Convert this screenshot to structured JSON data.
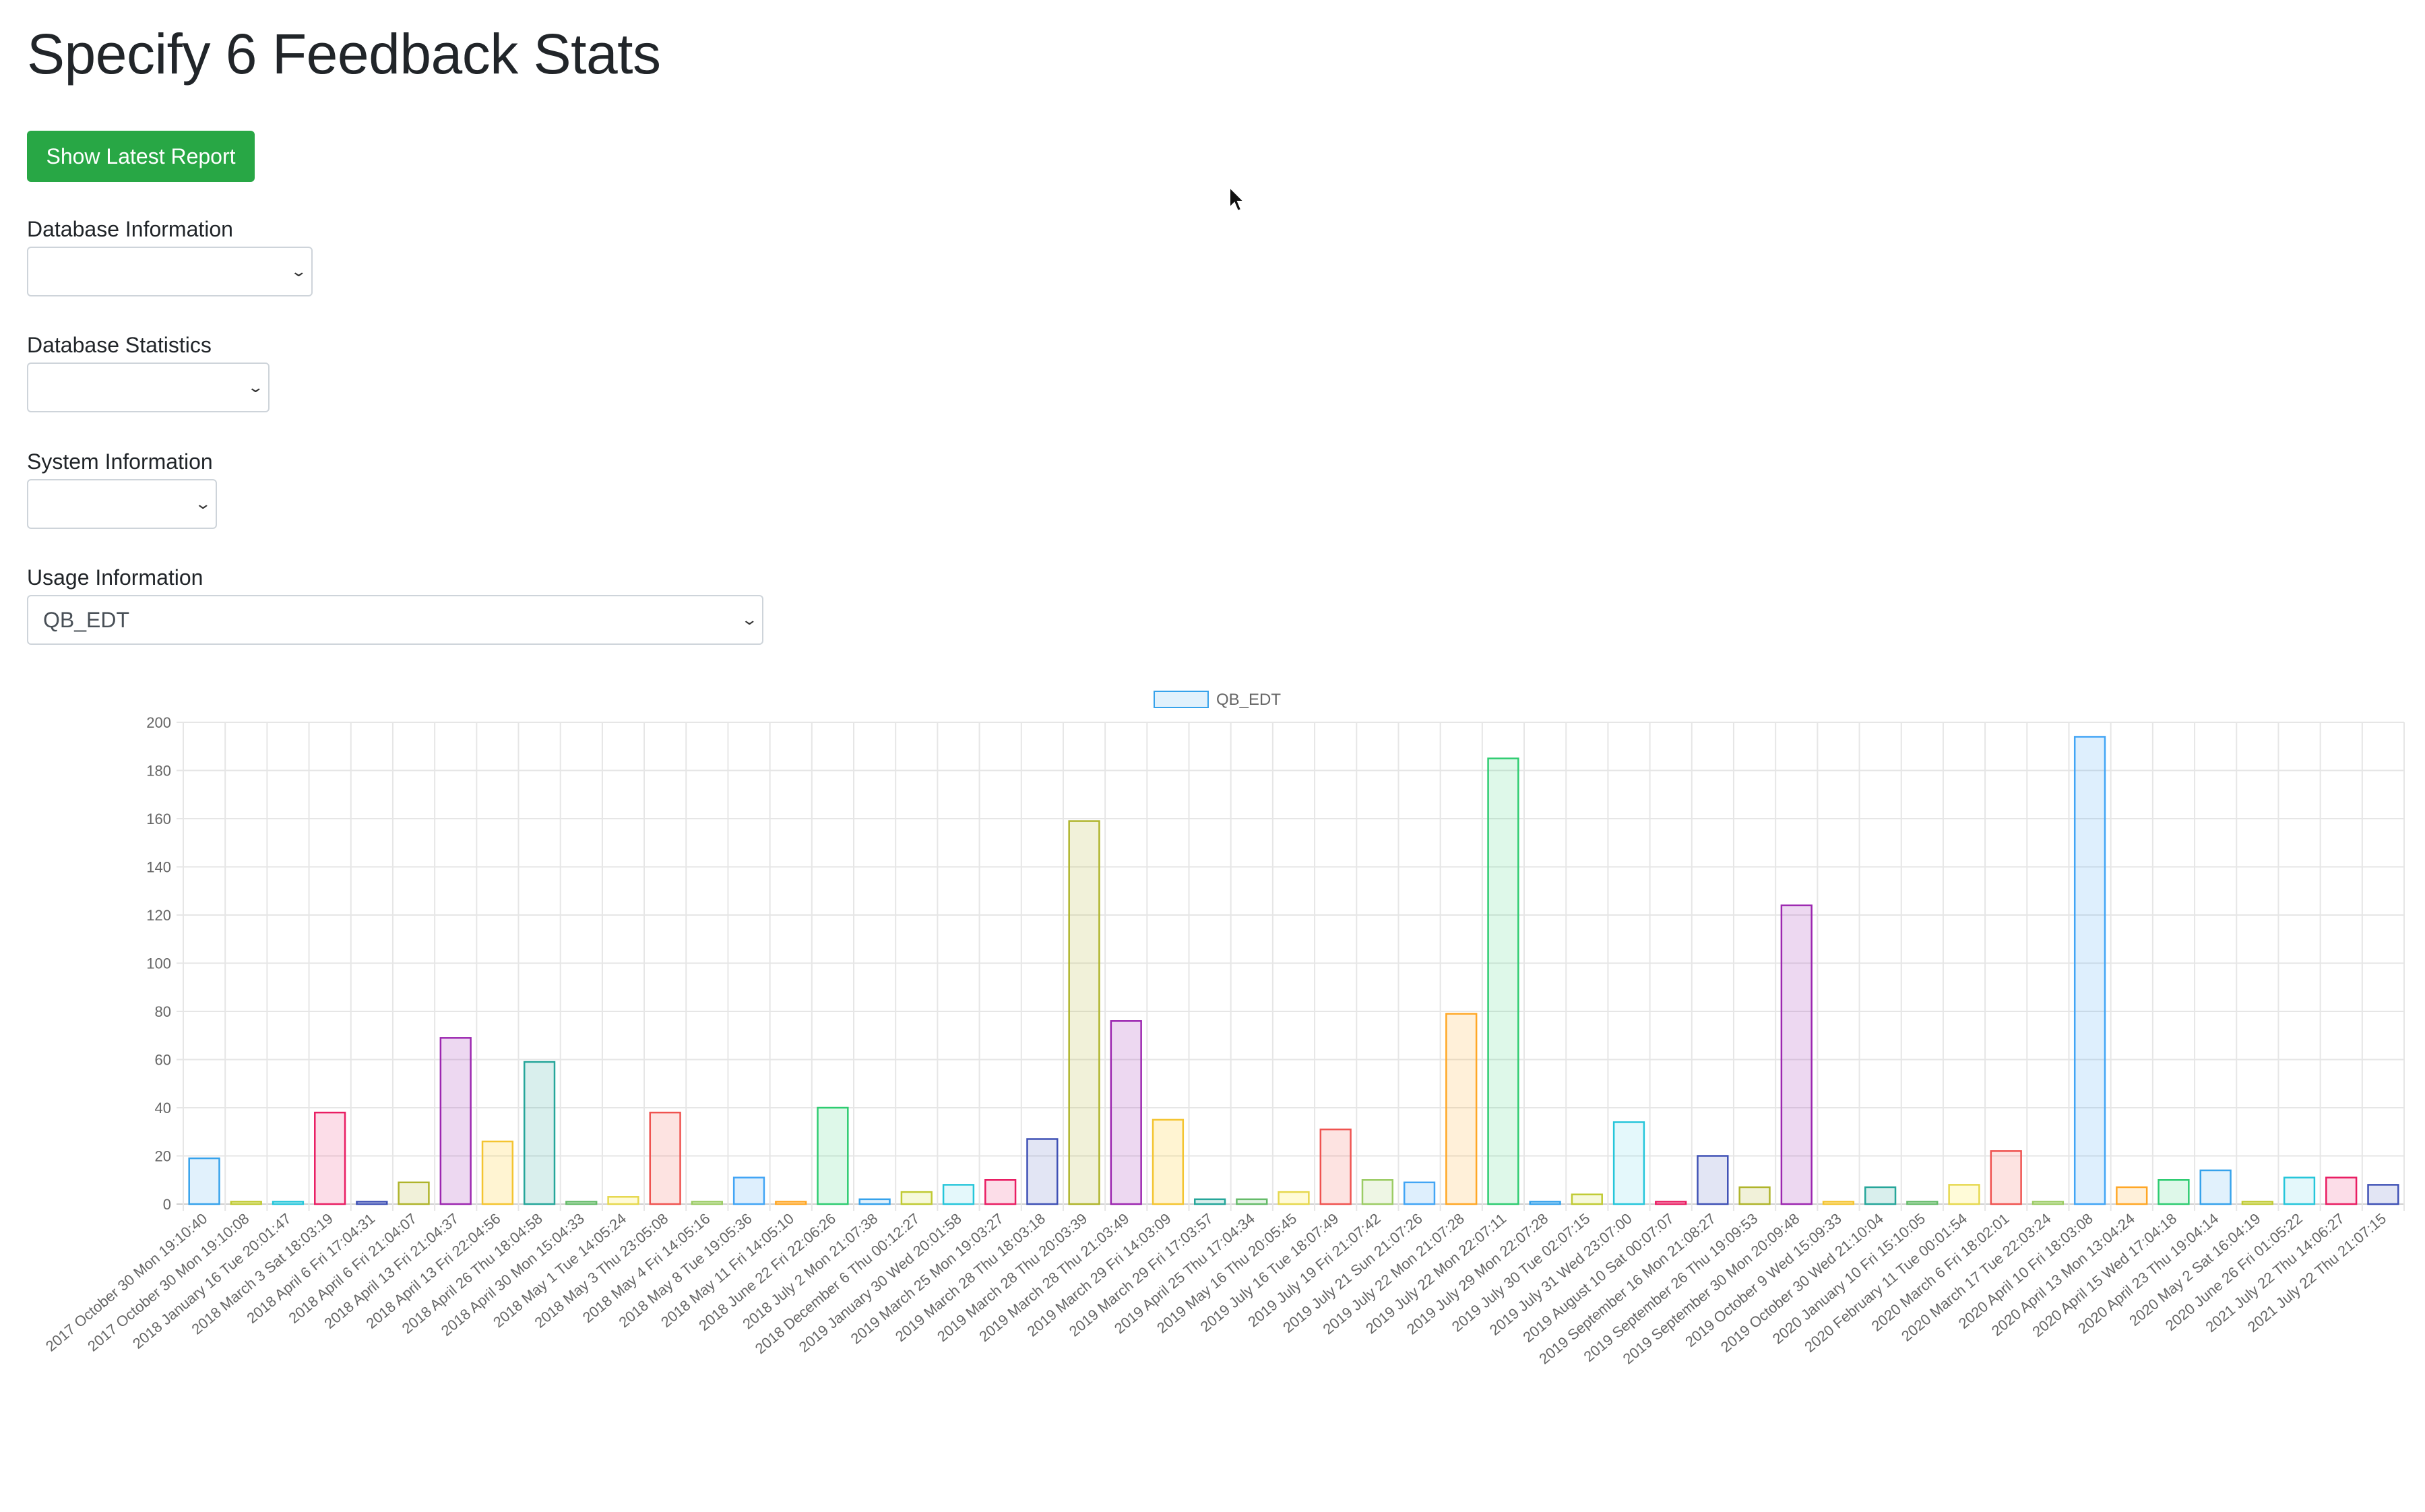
{
  "page": {
    "title": "Specify 6 Feedback Stats",
    "latest_button": "Show Latest Report"
  },
  "fields": {
    "db_info": {
      "label": "Database Information",
      "value": ""
    },
    "db_stats": {
      "label": "Database Statistics",
      "value": ""
    },
    "sys_info": {
      "label": "System Information",
      "value": ""
    },
    "usage_info": {
      "label": "Usage Information",
      "value": "QB_EDT"
    }
  },
  "chart_data": {
    "type": "bar",
    "legend": "QB_EDT",
    "legend_position": "top",
    "grid": true,
    "ylim": [
      0,
      200
    ],
    "yticks": [
      0,
      20,
      40,
      60,
      80,
      100,
      120,
      140,
      160,
      180,
      200
    ],
    "categories": [
      "2017 October 30 Mon 19:10:40",
      "2017 October 30 Mon 19:10:08",
      "2018 January 16 Tue 20:01:47",
      "2018 March 3 Sat 18:03:19",
      "2018 April 6 Fri 17:04:31",
      "2018 April 6 Fri 21:04:07",
      "2018 April 13 Fri 21:04:37",
      "2018 April 13 Fri 22:04:56",
      "2018 April 26 Thu 18:04:58",
      "2018 April 30 Mon 15:04:33",
      "2018 May 1 Tue 14:05:24",
      "2018 May 3 Thu 23:05:08",
      "2018 May 4 Fri 14:05:16",
      "2018 May 8 Tue 19:05:36",
      "2018 May 11 Fri 14:05:10",
      "2018 June 22 Fri 22:06:26",
      "2018 July 2 Mon 21:07:38",
      "2018 December 6 Thu 00:12:27",
      "2019 January 30 Wed 20:01:58",
      "2019 March 25 Mon 19:03:27",
      "2019 March 28 Thu 18:03:18",
      "2019 March 28 Thu 20:03:39",
      "2019 March 28 Thu 21:03:49",
      "2019 March 29 Fri 14:03:09",
      "2019 March 29 Fri 17:03:57",
      "2019 April 25 Thu 17:04:34",
      "2019 May 16 Thu 20:05:45",
      "2019 July 16 Tue 18:07:49",
      "2019 July 19 Fri 21:07:42",
      "2019 July 21 Sun 21:07:26",
      "2019 July 22 Mon 21:07:28",
      "2019 July 22 Mon 22:07:11",
      "2019 July 29 Mon 22:07:28",
      "2019 July 30 Tue 02:07:15",
      "2019 July 31 Wed 23:07:00",
      "2019 August 10 Sat 00:07:07",
      "2019 September 16 Mon 21:08:27",
      "2019 September 26 Thu 19:09:53",
      "2019 September 30 Mon 20:09:48",
      "2019 October 9 Wed 15:09:33",
      "2019 October 30 Wed 21:10:04",
      "2020 January 10 Fri 15:10:05",
      "2020 February 11 Tue 00:01:54",
      "2020 March 6 Fri 18:02:01",
      "2020 March 17 Tue 22:03:24",
      "2020 April 10 Fri 18:03:08",
      "2020 April 13 Mon 13:04:24",
      "2020 April 15 Wed 17:04:18",
      "2020 April 23 Thu 19:04:14",
      "2020 May 2 Sat 16:04:19",
      "2020 June 26 Fri 01:05:22",
      "2021 July 22 Thu 14:06:27",
      "2021 July 22 Thu 21:07:15"
    ],
    "values": [
      19,
      1,
      1,
      38,
      1,
      9,
      69,
      26,
      59,
      1,
      3,
      38,
      1,
      11,
      1,
      40,
      2,
      5,
      8,
      10,
      27,
      159,
      76,
      35,
      2,
      2,
      5,
      31,
      10,
      9,
      79,
      185,
      1,
      4,
      34,
      1,
      20,
      7,
      124,
      1,
      7,
      1,
      8,
      22,
      1,
      194,
      7,
      10,
      14,
      1,
      11,
      11,
      8
    ]
  }
}
